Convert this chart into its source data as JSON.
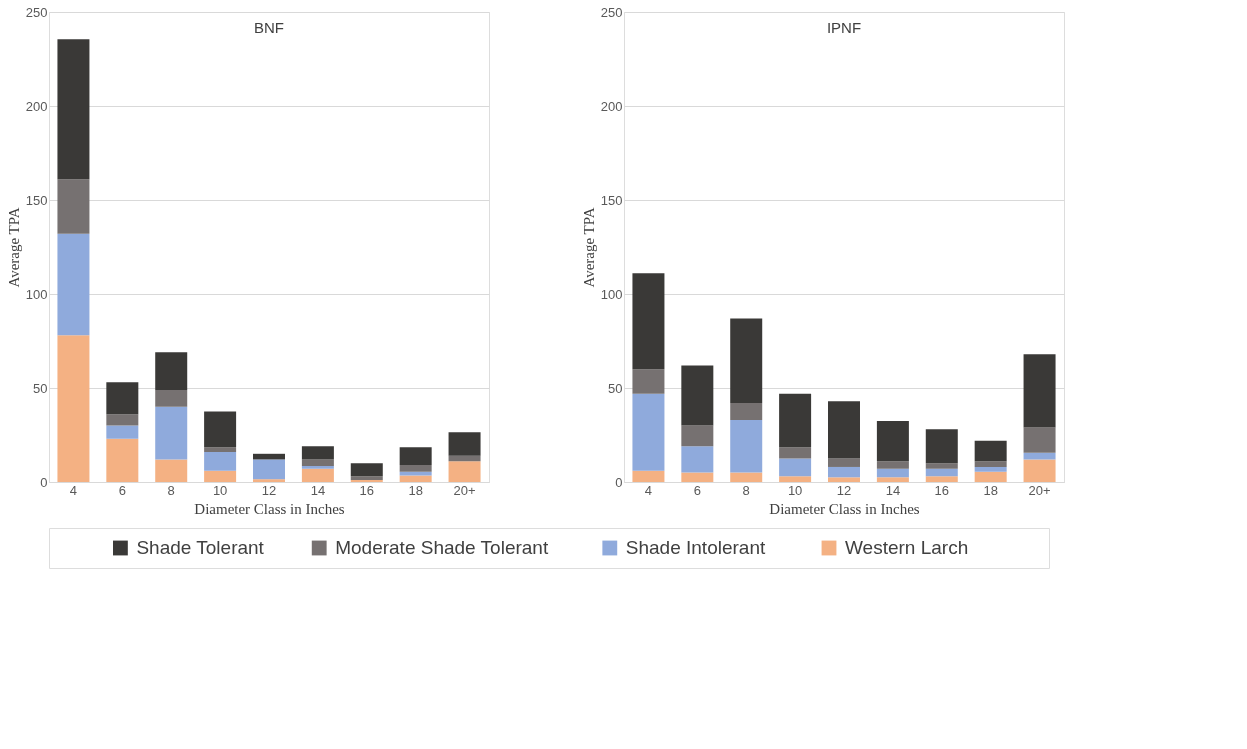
{
  "chart_data": [
    {
      "type": "bar",
      "title": "BNF",
      "stacked": true,
      "xlabel": "Diameter Class in Inches",
      "ylabel": "Average TPA",
      "categories": [
        "4",
        "6",
        "8",
        "10",
        "12",
        "14",
        "16",
        "18",
        "20+"
      ],
      "ylim": [
        0,
        250
      ],
      "yticks": [
        0,
        50,
        100,
        150,
        200,
        250
      ],
      "grid": "y",
      "legend": "bottom",
      "series": [
        {
          "name": "Western Larch",
          "color": "#f4b183",
          "values": [
            78,
            23,
            12,
            6,
            1.5,
            7,
            1,
            3.5,
            11
          ]
        },
        {
          "name": "Shade Intolerant",
          "color": "#8faadc",
          "values": [
            54,
            7,
            28,
            10,
            10.5,
            1.5,
            0,
            2,
            0
          ]
        },
        {
          "name": "Moderate Shade Tolerant",
          "color": "#767171",
          "values": [
            29,
            6,
            9,
            2.5,
            0,
            3.5,
            2,
            3.5,
            3
          ]
        },
        {
          "name": "Shade Tolerant",
          "color": "#3a3937",
          "values": [
            74.5,
            17,
            20,
            19,
            3,
            7,
            7,
            9.5,
            12.5
          ]
        }
      ]
    },
    {
      "type": "bar",
      "title": "IPNF",
      "stacked": true,
      "xlabel": "Diameter Class in Inches",
      "ylabel": "Average TPA",
      "categories": [
        "4",
        "6",
        "8",
        "10",
        "12",
        "14",
        "16",
        "18",
        "20+"
      ],
      "ylim": [
        0,
        250
      ],
      "yticks": [
        0,
        50,
        100,
        150,
        200,
        250
      ],
      "grid": "y",
      "legend": "bottom",
      "series": [
        {
          "name": "Western Larch",
          "color": "#f4b183",
          "values": [
            6,
            5,
            5,
            3,
            2.5,
            2.5,
            3,
            5.5,
            12
          ]
        },
        {
          "name": "Shade Intolerant",
          "color": "#8faadc",
          "values": [
            41,
            14,
            28,
            9.5,
            5.5,
            4.5,
            4,
            2.5,
            3.5
          ]
        },
        {
          "name": "Moderate Shade Tolerant",
          "color": "#767171",
          "values": [
            13,
            11,
            9,
            6,
            4.5,
            4,
            3,
            3,
            13.5
          ]
        },
        {
          "name": "Shade Tolerant",
          "color": "#3a3937",
          "values": [
            51,
            32,
            45,
            28.5,
            30.5,
            21.5,
            18,
            11,
            39
          ]
        }
      ]
    }
  ]
}
